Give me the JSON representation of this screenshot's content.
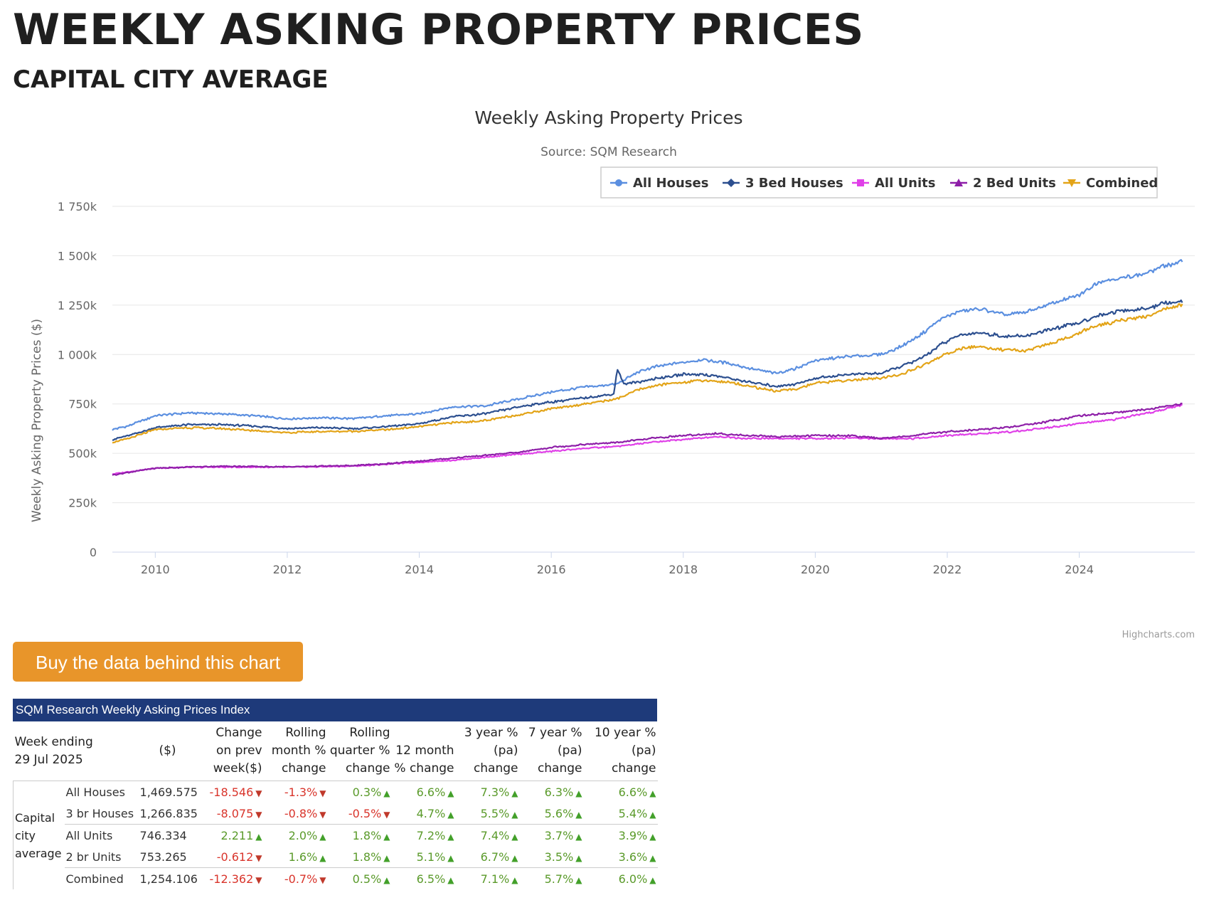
{
  "page": {
    "title": "WEEKLY ASKING PROPERTY PRICES",
    "subtitle": "CAPITAL CITY AVERAGE"
  },
  "chart_data": {
    "type": "line",
    "title": "Weekly Asking Property Prices",
    "subtitle": "Source: SQM Research",
    "ylabel": "Weekly Asking Property Prices ($)",
    "xlabel": "",
    "ylim": [
      0,
      1750000
    ],
    "y_ticks": [
      0,
      250000,
      500000,
      750000,
      1000000,
      1250000,
      1500000,
      1750000
    ],
    "y_tick_labels": [
      "0",
      "250k",
      "500k",
      "750k",
      "1 000k",
      "1 250k",
      "1 500k",
      "1 750k"
    ],
    "x_range": [
      2009.35,
      2025.75
    ],
    "x_ticks": [
      2010,
      2012,
      2014,
      2016,
      2018,
      2020,
      2022,
      2024
    ],
    "x_tick_labels": [
      "2010",
      "2012",
      "2014",
      "2016",
      "2018",
      "2020",
      "2022",
      "2024"
    ],
    "legend_position": "top-right",
    "grid": true,
    "credit": "Highcharts.com",
    "series": [
      {
        "name": "All Houses",
        "color": "#5b8fe0",
        "marker": "circle",
        "x": [
          2009.35,
          2009.6,
          2010.0,
          2010.5,
          2011.0,
          2011.5,
          2012.0,
          2012.5,
          2013.0,
          2013.5,
          2014.0,
          2014.5,
          2015.0,
          2015.5,
          2016.0,
          2016.5,
          2017.0,
          2017.3,
          2017.6,
          2018.0,
          2018.3,
          2018.7,
          2019.0,
          2019.4,
          2019.7,
          2020.0,
          2020.5,
          2021.0,
          2021.3,
          2021.6,
          2021.9,
          2022.2,
          2022.5,
          2022.9,
          2023.2,
          2023.6,
          2024.0,
          2024.3,
          2024.6,
          2025.0,
          2025.3,
          2025.58
        ],
        "y": [
          620000,
          640000,
          690000,
          705000,
          700000,
          690000,
          675000,
          680000,
          675000,
          690000,
          700000,
          735000,
          740000,
          775000,
          810000,
          835000,
          850000,
          910000,
          940000,
          960000,
          975000,
          955000,
          930000,
          905000,
          930000,
          970000,
          990000,
          1000000,
          1040000,
          1100000,
          1180000,
          1220000,
          1230000,
          1200000,
          1215000,
          1260000,
          1300000,
          1370000,
          1385000,
          1410000,
          1450000,
          1469575
        ]
      },
      {
        "name": "3 Bed Houses",
        "color": "#2c4f8f",
        "marker": "diamond",
        "x": [
          2009.35,
          2009.6,
          2010.0,
          2010.5,
          2011.0,
          2011.5,
          2012.0,
          2012.5,
          2013.0,
          2013.5,
          2014.0,
          2014.5,
          2015.0,
          2015.5,
          2016.0,
          2016.5,
          2016.95,
          2017.0,
          2017.1,
          2017.3,
          2017.6,
          2018.0,
          2018.3,
          2018.7,
          2019.0,
          2019.4,
          2019.7,
          2020.0,
          2020.5,
          2021.0,
          2021.3,
          2021.6,
          2021.9,
          2022.2,
          2022.5,
          2022.9,
          2023.2,
          2023.6,
          2024.0,
          2024.3,
          2024.6,
          2025.0,
          2025.3,
          2025.58
        ],
        "y": [
          570000,
          590000,
          630000,
          645000,
          645000,
          638000,
          625000,
          630000,
          625000,
          635000,
          650000,
          685000,
          700000,
          735000,
          760000,
          780000,
          800000,
          930000,
          850000,
          860000,
          880000,
          900000,
          900000,
          880000,
          860000,
          840000,
          850000,
          880000,
          900000,
          905000,
          940000,
          980000,
          1050000,
          1100000,
          1110000,
          1090000,
          1095000,
          1130000,
          1160000,
          1200000,
          1220000,
          1230000,
          1260000,
          1266835
        ]
      },
      {
        "name": "All Units",
        "color": "#e040e8",
        "marker": "square",
        "x": [
          2009.35,
          2010.0,
          2010.5,
          2011.0,
          2012.0,
          2013.0,
          2013.5,
          2014.0,
          2014.5,
          2015.0,
          2015.5,
          2016.0,
          2016.5,
          2017.0,
          2017.5,
          2018.0,
          2018.5,
          2019.0,
          2019.5,
          2020.0,
          2020.5,
          2021.0,
          2021.5,
          2022.0,
          2022.5,
          2023.0,
          2023.5,
          2024.0,
          2024.5,
          2025.0,
          2025.58
        ],
        "y": [
          395000,
          425000,
          430000,
          430000,
          430000,
          435000,
          445000,
          455000,
          465000,
          480000,
          495000,
          510000,
          525000,
          535000,
          555000,
          570000,
          585000,
          575000,
          575000,
          575000,
          578000,
          575000,
          575000,
          590000,
          600000,
          610000,
          630000,
          650000,
          670000,
          700000,
          746334
        ]
      },
      {
        "name": "2 Bed Units",
        "color": "#8e1fa8",
        "marker": "triangle",
        "x": [
          2009.35,
          2010.0,
          2010.5,
          2011.0,
          2012.0,
          2013.0,
          2013.5,
          2014.0,
          2014.5,
          2015.0,
          2015.5,
          2016.0,
          2016.5,
          2017.0,
          2017.5,
          2018.0,
          2018.5,
          2019.0,
          2019.5,
          2020.0,
          2020.5,
          2021.0,
          2021.5,
          2022.0,
          2022.5,
          2023.0,
          2023.5,
          2024.0,
          2024.5,
          2025.0,
          2025.58
        ],
        "y": [
          390000,
          425000,
          430000,
          435000,
          432000,
          438000,
          447000,
          460000,
          475000,
          490000,
          505000,
          530000,
          545000,
          555000,
          575000,
          590000,
          600000,
          590000,
          585000,
          590000,
          590000,
          575000,
          590000,
          610000,
          620000,
          635000,
          660000,
          690000,
          705000,
          720000,
          753265
        ]
      },
      {
        "name": "Combined",
        "color": "#e3a418",
        "marker": "triangle-down",
        "x": [
          2009.35,
          2009.6,
          2010.0,
          2010.5,
          2011.0,
          2011.5,
          2012.0,
          2012.5,
          2013.0,
          2013.5,
          2014.0,
          2014.5,
          2015.0,
          2015.5,
          2016.0,
          2016.5,
          2017.0,
          2017.3,
          2017.6,
          2018.0,
          2018.3,
          2018.7,
          2019.0,
          2019.4,
          2019.7,
          2020.0,
          2020.5,
          2021.0,
          2021.3,
          2021.6,
          2021.9,
          2022.2,
          2022.5,
          2022.9,
          2023.2,
          2023.6,
          2024.0,
          2024.3,
          2024.6,
          2025.0,
          2025.3,
          2025.58
        ],
        "y": [
          555000,
          575000,
          620000,
          630000,
          625000,
          615000,
          605000,
          610000,
          612000,
          620000,
          635000,
          655000,
          665000,
          695000,
          725000,
          750000,
          775000,
          820000,
          845000,
          860000,
          870000,
          860000,
          840000,
          815000,
          825000,
          855000,
          870000,
          880000,
          900000,
          940000,
          990000,
          1030000,
          1040000,
          1020000,
          1020000,
          1060000,
          1110000,
          1150000,
          1170000,
          1190000,
          1230000,
          1254106
        ]
      }
    ]
  },
  "buy_button": {
    "label": "Buy the data behind this chart"
  },
  "table": {
    "title": "SQM Research Weekly Asking Prices Index",
    "week_label": "Week ending",
    "week_date": "29 Jul 2025",
    "group_label": "Capital city average",
    "columns": [
      "($)",
      "Change on prev week($)",
      "Rolling month % change",
      "Rolling quarter % change",
      "12 month % change",
      "3 year %(pa) change",
      "7 year %(pa) change",
      "10 year %(pa) change"
    ],
    "rows": [
      {
        "label": "All Houses",
        "value": "1,469.575",
        "cells": [
          [
            "-18.546",
            "down"
          ],
          [
            "-1.3%",
            "down"
          ],
          [
            "0.3%",
            "up"
          ],
          [
            "6.6%",
            "up"
          ],
          [
            "7.3%",
            "up"
          ],
          [
            "6.3%",
            "up"
          ],
          [
            "6.6%",
            "up"
          ]
        ]
      },
      {
        "label": "3 br Houses",
        "value": "1,266.835",
        "cells": [
          [
            "-8.075",
            "down"
          ],
          [
            "-0.8%",
            "down"
          ],
          [
            "-0.5%",
            "down"
          ],
          [
            "4.7%",
            "up"
          ],
          [
            "5.5%",
            "up"
          ],
          [
            "5.6%",
            "up"
          ],
          [
            "5.4%",
            "up"
          ]
        ]
      },
      {
        "label": "All Units",
        "value": "746.334",
        "cells": [
          [
            "2.211",
            "up"
          ],
          [
            "2.0%",
            "up"
          ],
          [
            "1.8%",
            "up"
          ],
          [
            "7.2%",
            "up"
          ],
          [
            "7.4%",
            "up"
          ],
          [
            "3.7%",
            "up"
          ],
          [
            "3.9%",
            "up"
          ]
        ]
      },
      {
        "label": "2 br Units",
        "value": "753.265",
        "cells": [
          [
            "-0.612",
            "down"
          ],
          [
            "1.6%",
            "up"
          ],
          [
            "1.8%",
            "up"
          ],
          [
            "5.1%",
            "up"
          ],
          [
            "6.7%",
            "up"
          ],
          [
            "3.5%",
            "up"
          ],
          [
            "3.6%",
            "up"
          ]
        ]
      },
      {
        "label": "Combined",
        "value": "1,254.106",
        "cells": [
          [
            "-12.362",
            "down"
          ],
          [
            "-0.7%",
            "down"
          ],
          [
            "0.5%",
            "up"
          ],
          [
            "6.5%",
            "up"
          ],
          [
            "7.1%",
            "up"
          ],
          [
            "5.7%",
            "up"
          ],
          [
            "6.0%",
            "up"
          ]
        ]
      }
    ]
  }
}
